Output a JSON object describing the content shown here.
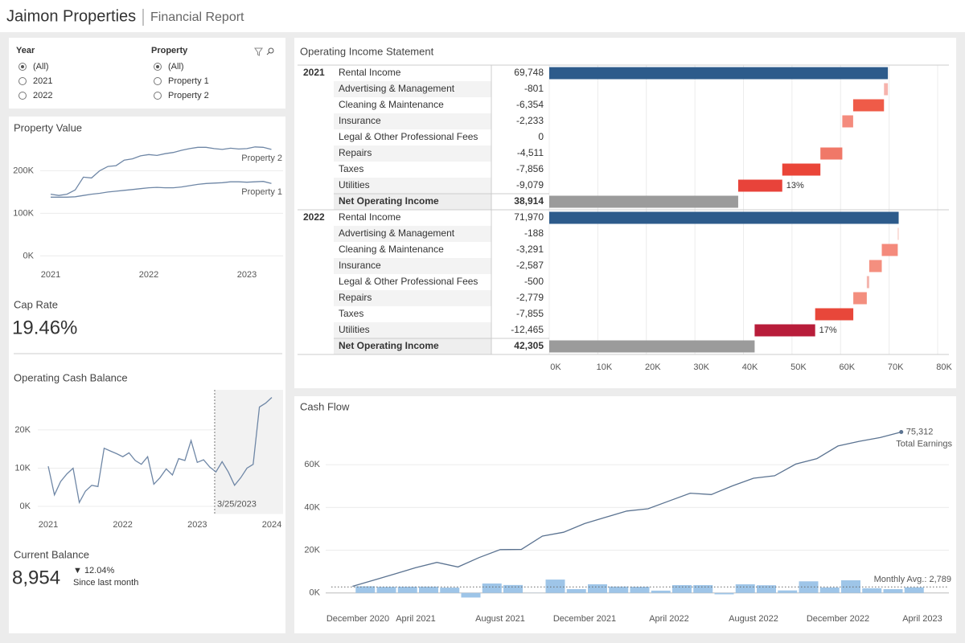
{
  "header": {
    "title": "Jaimon Properties",
    "subtitle": "Financial Report"
  },
  "filters": [
    {
      "label": "Year",
      "options": [
        "(All)",
        "2021",
        "2022"
      ],
      "selected": 0
    },
    {
      "label": "Property",
      "options": [
        "(All)",
        "Property 1",
        "Property 2"
      ],
      "selected": 0
    }
  ],
  "kpis": {
    "cap_rate": {
      "label": "Cap Rate",
      "value": "19.46%"
    },
    "current_balance": {
      "label": "Current Balance",
      "value": "8,954",
      "change": "▼ 12.04%",
      "change_note": "Since last month"
    }
  },
  "chart_data": [
    {
      "type": "line",
      "title": "Property Value",
      "categories": [
        "2021",
        null,
        null,
        null,
        null,
        null,
        null,
        null,
        null,
        null,
        null,
        null,
        "2022",
        null,
        null,
        null,
        null,
        null,
        null,
        null,
        null,
        null,
        null,
        null,
        "2023",
        null,
        null,
        null
      ],
      "series": [
        {
          "name": "Property 2",
          "color": "#6f87a6",
          "values": [
            145000,
            142000,
            145000,
            155000,
            185000,
            183000,
            200000,
            210000,
            212000,
            225000,
            228000,
            235000,
            238000,
            236000,
            240000,
            243000,
            248000,
            252000,
            255000,
            255000,
            252000,
            250000,
            253000,
            251000,
            252000,
            256000,
            255000,
            250000
          ]
        },
        {
          "name": "Property 1",
          "color": "#6f87a6",
          "values": [
            138000,
            138000,
            138000,
            139000,
            142000,
            145000,
            147000,
            150000,
            152000,
            154000,
            156000,
            158000,
            160000,
            161000,
            160000,
            160000,
            162000,
            165000,
            168000,
            170000,
            171000,
            172000,
            174000,
            174000,
            173000,
            174000,
            175000,
            170000
          ]
        }
      ],
      "ylim": [
        -20000,
        265000
      ],
      "yticks": [
        {
          "value": 0,
          "label": "0K"
        },
        {
          "value": 100000,
          "label": "100K"
        },
        {
          "value": 200000,
          "label": "200K"
        }
      ],
      "grid": true
    },
    {
      "type": "line",
      "title": "Operating Cash Balance",
      "categories": [
        "2021",
        null,
        null,
        null,
        null,
        null,
        null,
        null,
        null,
        null,
        null,
        null,
        "2022",
        null,
        null,
        null,
        null,
        null,
        null,
        null,
        null,
        null,
        null,
        null,
        "2023",
        null,
        null,
        null,
        null,
        null,
        null,
        null,
        null,
        null,
        null,
        null,
        "2024"
      ],
      "values": [
        10500,
        3000,
        6500,
        8500,
        10000,
        1000,
        4000,
        5500,
        5200,
        15200,
        14500,
        13800,
        13000,
        14000,
        12000,
        11000,
        13000,
        5800,
        7500,
        9800,
        8200,
        12500,
        12000,
        17200,
        11500,
        12200,
        10300,
        9000,
        11700,
        9000,
        5500,
        7500,
        10000,
        11000,
        26000,
        27000,
        28500
      ],
      "color": "#6f87a6",
      "reference": {
        "label": "3/25/2023"
      },
      "ylim": [
        -2000,
        30500
      ],
      "yticks": [
        {
          "value": 0,
          "label": "0K"
        },
        {
          "value": 10000,
          "label": "10K"
        },
        {
          "value": 20000,
          "label": "20K"
        }
      ],
      "grid": true
    },
    {
      "type": "waterfall",
      "title": "Operating Income Statement",
      "groups": [
        {
          "name": "2021",
          "categories": [
            "Rental Income",
            "Advertising & Management",
            "Cleaning & Maintenance",
            "Insurance",
            "Legal & Other Professional Fees",
            "Repairs",
            "Taxes",
            "Utilities"
          ],
          "values": [
            69748,
            -801,
            -6354,
            -2233,
            0,
            -4511,
            -7856,
            -9079
          ],
          "value_labels": [
            "69,748",
            "-801",
            "-6,354",
            "-2,233",
            "0",
            "-4,511",
            "-7,856",
            "-9,079"
          ],
          "colors": [
            "#2d5b8b",
            "#f6b3ac",
            "#ef5b48",
            "#f48b7d",
            "#f6c0b9",
            "#f07868",
            "#ea4538",
            "#e8433a"
          ],
          "annotation": "13%",
          "total_label": "Net Operating Income",
          "total": 38914,
          "total_value_label": "38,914"
        },
        {
          "name": "2022",
          "categories": [
            "Rental Income",
            "Advertising & Management",
            "Cleaning & Maintenance",
            "Insurance",
            "Legal & Other Professional Fees",
            "Repairs",
            "Taxes",
            "Utilities"
          ],
          "values": [
            71970,
            -188,
            -3291,
            -2587,
            -500,
            -2779,
            -7855,
            -12465
          ],
          "value_labels": [
            "71,970",
            "-188",
            "-3,291",
            "-2,587",
            "-500",
            "-2,779",
            "-7,855",
            "-12,465"
          ],
          "colors": [
            "#2d5b8b",
            "#f7c6c0",
            "#f48a7c",
            "#f48f7f",
            "#f4b5ae",
            "#f38e7e",
            "#e8473a",
            "#b81d3a"
          ],
          "annotation": "17%",
          "total_label": "Net Operating Income",
          "total": 42305,
          "total_value_label": "42,305"
        }
      ],
      "total_color": "#9b9b9b",
      "xlim": [
        0,
        80000
      ],
      "xticks": [
        {
          "value": 0,
          "label": "0K"
        },
        {
          "value": 10000,
          "label": "10K"
        },
        {
          "value": 20000,
          "label": "20K"
        },
        {
          "value": 30000,
          "label": "30K"
        },
        {
          "value": 40000,
          "label": "40K"
        },
        {
          "value": 50000,
          "label": "50K"
        },
        {
          "value": 60000,
          "label": "60K"
        },
        {
          "value": 70000,
          "label": "70K"
        },
        {
          "value": 80000,
          "label": "80K"
        }
      ],
      "grid": true
    },
    {
      "type": "bar_line",
      "title": "Cash Flow",
      "categories": [
        "December 2020",
        null,
        null,
        null,
        "April 2021",
        null,
        null,
        null,
        "August 2021",
        null,
        null,
        null,
        "December 2021",
        null,
        null,
        null,
        "April 2022",
        null,
        null,
        null,
        "August 2022",
        null,
        null,
        null,
        "December 2022",
        null,
        null,
        null,
        "April 2023"
      ],
      "values": [
        null,
        3105,
        2840,
        2920,
        2950,
        2480,
        -2150,
        4420,
        3700,
        80,
        6250,
        1790,
        4060,
        2980,
        2890,
        1080,
        3650,
        3640,
        -650,
        4050,
        3590,
        1170,
        5430,
        2560,
        5920,
        2180,
        1770,
        2607,
        null
      ],
      "color": "#9ec5e8",
      "line": {
        "name": "Total Earnings",
        "color": "#5b7391",
        "end_label": "75,312"
      },
      "reference": {
        "value": 2789,
        "label": "Monthly Avg.: 2,789"
      },
      "ylim": [
        -5000,
        80000
      ],
      "yticks": [
        {
          "value": 0,
          "label": "0K"
        },
        {
          "value": 20000,
          "label": "20K"
        },
        {
          "value": 40000,
          "label": "40K"
        },
        {
          "value": 60000,
          "label": "60K"
        }
      ],
      "grid": true
    }
  ]
}
